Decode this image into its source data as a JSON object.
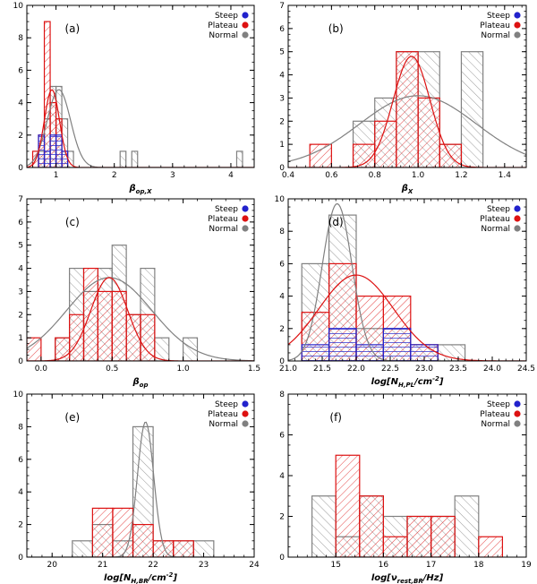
{
  "colors": {
    "steep": "#2222cc",
    "plateau": "#dd1111",
    "normal": "#808080"
  },
  "chart_data": [
    {
      "type": "bar",
      "tag": "(a)",
      "xlabel": "β_op,X",
      "xlim": [
        0.5,
        4.4
      ],
      "ylim": [
        0,
        10
      ],
      "xticks": [
        1,
        2,
        3,
        4
      ],
      "yticks": [
        0,
        2,
        4,
        6,
        8,
        10
      ],
      "legend": [
        "Steep",
        "Plateau",
        "Normal"
      ],
      "series": [
        {
          "name": "Normal",
          "bins": [
            [
              0.7,
              0.8,
              1
            ],
            [
              0.8,
              0.9,
              3
            ],
            [
              0.9,
              1.0,
              5
            ],
            [
              1.0,
              1.1,
              5
            ],
            [
              1.1,
              1.2,
              3
            ],
            [
              1.2,
              1.3,
              1
            ],
            [
              2.1,
              2.2,
              1
            ],
            [
              2.3,
              2.4,
              1
            ],
            [
              4.1,
              4.2,
              1
            ]
          ],
          "curve": {
            "mu": 1.05,
            "sigma": 0.2,
            "amp": 4.8
          }
        },
        {
          "name": "Plateau",
          "bins": [
            [
              0.6,
              0.7,
              1
            ],
            [
              0.7,
              0.8,
              2
            ],
            [
              0.8,
              0.9,
              9
            ],
            [
              0.9,
              1.0,
              4
            ],
            [
              1.0,
              1.1,
              3
            ],
            [
              1.1,
              1.2,
              1
            ]
          ],
          "curve": {
            "mu": 0.93,
            "sigma": 0.13,
            "amp": 4.8
          }
        },
        {
          "name": "Steep",
          "bins": [
            [
              0.7,
              0.8,
              2
            ],
            [
              0.8,
              0.9,
              1
            ],
            [
              0.9,
              1.0,
              2
            ],
            [
              1.0,
              1.1,
              2
            ],
            [
              1.1,
              1.2,
              1
            ]
          ]
        }
      ]
    },
    {
      "type": "bar",
      "tag": "(b)",
      "xlabel": "β_X",
      "xlim": [
        0.4,
        1.5
      ],
      "ylim": [
        0,
        7
      ],
      "xticks": [
        0.4,
        0.6,
        0.8,
        1.0,
        1.2,
        1.4
      ],
      "yticks": [
        0,
        1,
        2,
        3,
        4,
        5,
        6,
        7
      ],
      "legend": [
        "Steep",
        "Plateau",
        "Normal"
      ],
      "series": [
        {
          "name": "Normal",
          "bins": [
            [
              0.7,
              0.8,
              2
            ],
            [
              0.8,
              0.9,
              3
            ],
            [
              0.9,
              1.0,
              5
            ],
            [
              1.0,
              1.1,
              5
            ],
            [
              1.1,
              1.2,
              1
            ],
            [
              1.2,
              1.3,
              5
            ]
          ],
          "curve": {
            "mu": 1.0,
            "sigma": 0.27,
            "amp": 3.1
          }
        },
        {
          "name": "Plateau",
          "bins": [
            [
              0.5,
              0.6,
              1
            ],
            [
              0.7,
              0.8,
              1
            ],
            [
              0.8,
              0.9,
              2
            ],
            [
              0.9,
              1.0,
              5
            ],
            [
              1.0,
              1.1,
              3
            ],
            [
              1.1,
              1.2,
              1
            ]
          ],
          "curve": {
            "mu": 0.97,
            "sigma": 0.085,
            "amp": 4.8
          }
        }
      ]
    },
    {
      "type": "bar",
      "tag": "(c)",
      "xlabel": "β_op",
      "xlim": [
        -0.1,
        1.5
      ],
      "ylim": [
        0,
        7
      ],
      "xticks": [
        0.0,
        0.5,
        1.0,
        1.5
      ],
      "yticks": [
        0,
        1,
        2,
        3,
        4,
        5,
        6,
        7
      ],
      "legend": [
        "Steep",
        "Plateau",
        "Normal"
      ],
      "series": [
        {
          "name": "Normal",
          "bins": [
            [
              0.1,
              0.2,
              1
            ],
            [
              0.2,
              0.3,
              4
            ],
            [
              0.3,
              0.4,
              3
            ],
            [
              0.4,
              0.5,
              4
            ],
            [
              0.5,
              0.6,
              5
            ],
            [
              0.6,
              0.7,
              2
            ],
            [
              0.7,
              0.8,
              4
            ],
            [
              0.8,
              0.9,
              1
            ],
            [
              1.0,
              1.1,
              1
            ]
          ],
          "curve": {
            "mu": 0.48,
            "sigma": 0.3,
            "amp": 3.6
          }
        },
        {
          "name": "Plateau",
          "bins": [
            [
              -0.1,
              0.0,
              1
            ],
            [
              0.1,
              0.2,
              1
            ],
            [
              0.2,
              0.3,
              2
            ],
            [
              0.3,
              0.4,
              4
            ],
            [
              0.4,
              0.5,
              3
            ],
            [
              0.5,
              0.6,
              3
            ],
            [
              0.6,
              0.7,
              2
            ],
            [
              0.7,
              0.8,
              2
            ]
          ],
          "curve": {
            "mu": 0.48,
            "sigma": 0.13,
            "amp": 3.6
          }
        }
      ]
    },
    {
      "type": "bar",
      "tag": "(d)",
      "xlabel": "log[N_H,PL/cm^-2]",
      "xlim": [
        21.0,
        24.5
      ],
      "ylim": [
        0,
        10
      ],
      "xticks": [
        21.0,
        21.5,
        22.0,
        22.5,
        23.0,
        23.5,
        24.0,
        24.5
      ],
      "yticks": [
        0,
        2,
        4,
        6,
        8,
        10
      ],
      "legend": [
        "Steep",
        "Plateau",
        "Normal"
      ],
      "series": [
        {
          "name": "Normal",
          "bins": [
            [
              21.2,
              21.6,
              6
            ],
            [
              21.6,
              22.0,
              9
            ],
            [
              22.0,
              22.4,
              2
            ],
            [
              22.4,
              22.8,
              2
            ],
            [
              22.8,
              23.2,
              1
            ],
            [
              23.2,
              23.6,
              1
            ]
          ],
          "curve": {
            "mu": 21.72,
            "sigma": 0.22,
            "amp": 9.7
          }
        },
        {
          "name": "Plateau",
          "bins": [
            [
              21.2,
              21.6,
              3
            ],
            [
              21.6,
              22.0,
              6
            ],
            [
              22.0,
              22.4,
              4
            ],
            [
              22.4,
              22.8,
              4
            ],
            [
              22.8,
              23.2,
              1
            ]
          ],
          "curve": {
            "mu": 22.0,
            "sigma": 0.55,
            "amp": 5.3
          }
        },
        {
          "name": "Steep",
          "bins": [
            [
              21.2,
              21.6,
              1
            ],
            [
              21.6,
              22.0,
              2
            ],
            [
              22.0,
              22.4,
              1
            ],
            [
              22.4,
              22.8,
              2
            ],
            [
              22.8,
              23.2,
              1
            ]
          ]
        }
      ]
    },
    {
      "type": "bar",
      "tag": "(e)",
      "xlabel": "log[N_H,BR/cm^-2]",
      "xlim": [
        19.5,
        24.0
      ],
      "ylim": [
        0,
        10
      ],
      "xticks": [
        20,
        21,
        22,
        23,
        24
      ],
      "yticks": [
        0,
        2,
        4,
        6,
        8,
        10
      ],
      "legend": [
        "Steep",
        "Plateau",
        "Normal"
      ],
      "series": [
        {
          "name": "Normal",
          "bins": [
            [
              20.4,
              20.8,
              1
            ],
            [
              20.8,
              21.2,
              2
            ],
            [
              21.2,
              21.6,
              1
            ],
            [
              21.6,
              22.0,
              8
            ],
            [
              22.0,
              22.4,
              1
            ],
            [
              22.4,
              22.8,
              1
            ],
            [
              22.8,
              23.2,
              1
            ]
          ],
          "curve": {
            "mu": 21.85,
            "sigma": 0.16,
            "amp": 8.3
          }
        },
        {
          "name": "Plateau",
          "bins": [
            [
              20.8,
              21.2,
              3
            ],
            [
              21.2,
              21.6,
              3
            ],
            [
              21.6,
              22.0,
              2
            ],
            [
              22.0,
              22.4,
              1
            ],
            [
              22.4,
              22.8,
              1
            ]
          ]
        }
      ]
    },
    {
      "type": "bar",
      "tag": "(f)",
      "xlabel": "log[ν_rest,BR/Hz]",
      "xlim": [
        14.0,
        19.0
      ],
      "ylim": [
        0,
        8
      ],
      "xticks": [
        15,
        16,
        17,
        18,
        19
      ],
      "yticks": [
        0,
        2,
        4,
        6,
        8
      ],
      "legend": [
        "Steep",
        "Plateau",
        "Normal"
      ],
      "series": [
        {
          "name": "Normal",
          "bins": [
            [
              14.5,
              15.0,
              3
            ],
            [
              15.0,
              15.5,
              1
            ],
            [
              15.5,
              16.0,
              3
            ],
            [
              16.0,
              16.5,
              2
            ],
            [
              16.5,
              17.0,
              2
            ],
            [
              17.0,
              17.5,
              2
            ],
            [
              17.5,
              18.0,
              3
            ]
          ]
        },
        {
          "name": "Plateau",
          "bins": [
            [
              15.0,
              15.5,
              5
            ],
            [
              15.5,
              16.0,
              3
            ],
            [
              16.0,
              16.5,
              1
            ],
            [
              16.5,
              17.0,
              2
            ],
            [
              17.0,
              17.5,
              2
            ],
            [
              18.0,
              18.5,
              1
            ]
          ]
        }
      ]
    }
  ]
}
